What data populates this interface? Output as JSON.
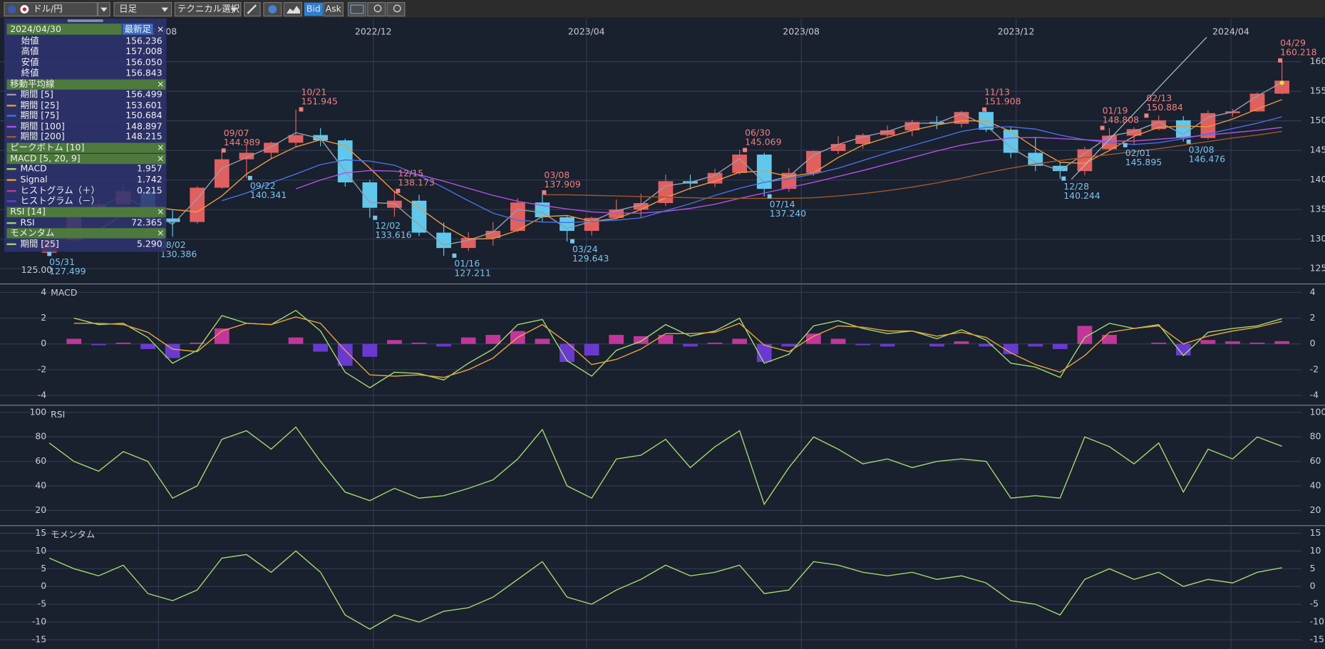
{
  "toolbar": {
    "symbol": "ドル/円",
    "timeframe": "日足",
    "technical": "テクニカル選択",
    "bid": "Bid",
    "ask": "Ask"
  },
  "info_panel": {
    "date": "2024/04/30",
    "latest": "最新足",
    "close": "×",
    "open_label": "始値",
    "open": "156.236",
    "high_label": "高値",
    "high": "157.008",
    "low_label": "安値",
    "low": "156.050",
    "close_label": "終値",
    "close_value": "156.843",
    "ma_title": "移動平均線",
    "peak_title": "ピークボトム [10]",
    "macd_title": "MACD [5, 20, 9]",
    "rsi_title": "RSI [14]",
    "momentum_title": "モメンタム",
    "momentum_value": "5.290"
  },
  "chart_data": [
    {
      "type": "candlestick",
      "cursor_label": "125.00",
      "x": [
        "2022/05/31",
        "2022/06/14",
        "2022/06/28",
        "2022/07/12",
        "2022/07/26",
        "2022/08/09",
        "2022/08/23",
        "2022/09/06",
        "2022/09/20",
        "2022/10/04",
        "2022/10/18",
        "2022/11/01",
        "2022/11/15",
        "2022/11/29",
        "2022/12/13",
        "2022/12/27",
        "2023/01/10",
        "2023/01/24",
        "2023/02/07",
        "2023/02/21",
        "2023/03/07",
        "2023/03/21",
        "2023/04/04",
        "2023/04/18",
        "2023/05/02",
        "2023/05/16",
        "2023/05/30",
        "2023/06/13",
        "2023/06/27",
        "2023/07/11",
        "2023/07/25",
        "2023/08/08",
        "2023/08/22",
        "2023/09/05",
        "2023/09/19",
        "2023/10/03",
        "2023/10/17",
        "2023/10/31",
        "2023/11/14",
        "2023/11/28",
        "2023/12/12",
        "2023/12/26",
        "2024/01/09",
        "2024/01/23",
        "2024/02/06",
        "2024/02/20",
        "2024/03/05",
        "2024/03/19",
        "2024/04/02",
        "2024/04/16",
        "2024/04/30"
      ],
      "open": [
        127.7,
        129.8,
        134.5,
        135.9,
        138.1,
        133.5,
        132.9,
        138.7,
        143.5,
        144.6,
        146.3,
        147.6,
        146.7,
        139.6,
        135.3,
        136.5,
        131.1,
        128.5,
        130.2,
        131.4,
        136.2,
        133.7,
        131.4,
        133.6,
        135.0,
        136.1,
        139.8,
        139.4,
        141.2,
        144.3,
        138.5,
        141.2,
        144.9,
        146.1,
        147.6,
        148.4,
        149.8,
        149.5,
        151.5,
        148.5,
        144.6,
        142.4,
        141.5,
        145.2,
        147.5,
        148.6,
        150.1,
        147.1,
        151.3,
        151.6,
        154.6
      ],
      "high": [
        130.0,
        135.6,
        137.0,
        139.4,
        138.8,
        135.0,
        139.0,
        145.0,
        145.9,
        146.5,
        151.9,
        148.8,
        147.0,
        140.0,
        138.2,
        137.5,
        132.8,
        131.2,
        132.9,
        136.9,
        137.9,
        134.0,
        133.8,
        136.7,
        137.7,
        140.9,
        140.9,
        141.9,
        145.1,
        144.6,
        142.0,
        145.0,
        147.4,
        147.9,
        149.2,
        150.2,
        150.8,
        151.7,
        151.9,
        149.0,
        147.3,
        143.0,
        145.6,
        148.8,
        148.9,
        150.9,
        150.8,
        151.8,
        152.0,
        154.8,
        160.2
      ],
      "low": [
        127.5,
        129.6,
        133.9,
        135.5,
        132.5,
        130.4,
        132.6,
        138.5,
        140.3,
        143.5,
        145.5,
        145.7,
        138.9,
        133.6,
        133.8,
        130.5,
        127.2,
        128.0,
        128.9,
        131.2,
        133.0,
        129.6,
        130.6,
        133.4,
        133.6,
        135.6,
        138.4,
        138.8,
        140.9,
        137.2,
        138.0,
        140.7,
        144.4,
        145.3,
        147.3,
        147.4,
        148.6,
        148.9,
        148.1,
        143.7,
        141.5,
        140.2,
        140.8,
        144.9,
        145.9,
        148.4,
        146.5,
        146.9,
        150.7,
        151.5,
        154.5
      ],
      "close": [
        129.8,
        134.5,
        135.9,
        138.1,
        133.5,
        132.9,
        138.7,
        143.5,
        144.6,
        146.3,
        147.6,
        146.7,
        139.6,
        135.3,
        136.5,
        131.1,
        128.5,
        130.2,
        131.4,
        136.2,
        133.7,
        131.4,
        133.6,
        135.0,
        136.1,
        139.8,
        139.4,
        141.2,
        144.3,
        138.5,
        141.2,
        144.9,
        146.1,
        147.6,
        148.4,
        149.8,
        149.5,
        151.5,
        148.5,
        144.6,
        142.4,
        141.5,
        145.2,
        147.5,
        148.6,
        150.1,
        147.1,
        151.3,
        151.6,
        154.6,
        156.8
      ],
      "up_color": "#e06060",
      "down_color": "#60c8ec",
      "series": [
        {
          "name": "期間 [5]",
          "color": "#9a9aa8",
          "values": [
            128.9,
            133.2,
            135.3,
            137.4,
            135.0,
            132.5,
            136.8,
            142.0,
            143.8,
            145.6,
            148.0,
            147.0,
            141.5,
            136.2,
            136.0,
            132.4,
            129.0,
            129.8,
            131.2,
            135.0,
            134.5,
            131.8,
            133.0,
            134.8,
            135.8,
            139.0,
            139.6,
            140.8,
            143.6,
            139.6,
            140.6,
            144.2,
            146.0,
            147.3,
            148.2,
            149.6,
            149.6,
            151.2,
            149.2,
            145.5,
            143.0,
            141.6,
            144.5,
            147.4,
            148.2,
            149.8,
            147.7,
            150.6,
            151.5,
            154.2,
            156.499
          ]
        },
        {
          "name": "期間 [25]",
          "color": "#e89a3c",
          "values": [
            null,
            null,
            131.5,
            134.2,
            135.6,
            135.0,
            134.6,
            137.3,
            141.0,
            143.6,
            145.6,
            146.8,
            145.8,
            142.0,
            138.0,
            135.3,
            132.3,
            130.0,
            130.1,
            131.5,
            133.8,
            134.0,
            133.0,
            133.5,
            135.0,
            137.0,
            138.6,
            139.8,
            141.3,
            141.5,
            140.6,
            141.2,
            143.8,
            145.9,
            147.2,
            148.4,
            149.3,
            150.0,
            150.0,
            148.2,
            145.4,
            143.0,
            142.8,
            145.0,
            147.4,
            148.9,
            149.1,
            149.0,
            150.3,
            152.0,
            153.601
          ]
        },
        {
          "name": "期間 [75]",
          "color": "#4a6ee0",
          "values": [
            null,
            null,
            null,
            null,
            null,
            null,
            null,
            136.5,
            137.8,
            139.5,
            141.0,
            142.6,
            143.4,
            143.2,
            142.5,
            140.8,
            138.7,
            136.5,
            134.4,
            133.2,
            132.9,
            132.8,
            133.0,
            133.2,
            133.6,
            134.8,
            136.0,
            137.4,
            138.6,
            139.6,
            140.2,
            141.0,
            142.0,
            143.3,
            144.6,
            145.8,
            147.0,
            148.2,
            148.9,
            149.0,
            148.6,
            147.6,
            146.8,
            146.3,
            146.0,
            146.3,
            147.0,
            147.8,
            148.7,
            149.6,
            150.684
          ]
        },
        {
          "name": "期間 [100]",
          "color": "#b050e0",
          "values": [
            null,
            null,
            null,
            null,
            null,
            null,
            null,
            null,
            null,
            null,
            138.5,
            140.0,
            141.2,
            141.6,
            141.5,
            140.9,
            139.8,
            138.6,
            137.4,
            136.4,
            135.7,
            135.1,
            134.6,
            134.4,
            134.4,
            134.7,
            135.2,
            135.9,
            136.9,
            137.8,
            138.7,
            139.6,
            140.6,
            141.6,
            142.7,
            143.8,
            144.9,
            145.9,
            146.6,
            147.1,
            147.2,
            147.0,
            146.8,
            146.6,
            146.6,
            146.9,
            147.2,
            147.6,
            148.0,
            148.4,
            148.897
          ]
        },
        {
          "name": "期間 [200]",
          "color": "#a0582a",
          "values": [
            null,
            null,
            null,
            null,
            null,
            null,
            null,
            null,
            null,
            null,
            null,
            null,
            null,
            null,
            null,
            null,
            null,
            null,
            null,
            null,
            137.5,
            137.5,
            137.4,
            137.3,
            137.2,
            137.1,
            137.0,
            136.9,
            136.9,
            136.9,
            136.9,
            137.0,
            137.3,
            137.7,
            138.2,
            138.8,
            139.5,
            140.3,
            141.2,
            142.0,
            142.7,
            143.3,
            143.8,
            144.3,
            144.8,
            145.3,
            145.9,
            146.5,
            147.1,
            147.6,
            148.215
          ]
        }
      ],
      "peak_color": "#f08080",
      "bottom_color": "#7cc4ec",
      "annotations": [
        {
          "kind": "bottom",
          "date": "05/31",
          "value": 127.499,
          "label": "127.499"
        },
        {
          "kind": "bottom",
          "date": "08/02",
          "value": 130.386,
          "label": "130.386"
        },
        {
          "kind": "peak",
          "date": "09/07",
          "value": 144.989,
          "label": "144.989"
        },
        {
          "kind": "bottom",
          "date": "09/22",
          "value": 140.341,
          "label": "140.341"
        },
        {
          "kind": "peak",
          "date": "10/21",
          "value": 151.945,
          "label": "151.945"
        },
        {
          "kind": "bottom",
          "date": "12/02",
          "value": 133.616,
          "label": "133.616"
        },
        {
          "kind": "peak",
          "date": "12/15",
          "value": 138.173,
          "label": "138.173"
        },
        {
          "kind": "bottom",
          "date": "01/16",
          "value": 127.211,
          "label": "127.211"
        },
        {
          "kind": "peak",
          "date": "03/08",
          "value": 137.909,
          "label": "137.909"
        },
        {
          "kind": "bottom",
          "date": "03/24",
          "value": 129.643,
          "label": "129.643"
        },
        {
          "kind": "peak",
          "date": "06/30",
          "value": 145.069,
          "label": "145.069"
        },
        {
          "kind": "bottom",
          "date": "07/14",
          "value": 137.24,
          "label": "137.240"
        },
        {
          "kind": "peak",
          "date": "11/13",
          "value": 151.908,
          "label": "151.908"
        },
        {
          "kind": "bottom",
          "date": "12/28",
          "value": 140.244,
          "label": "140.244"
        },
        {
          "kind": "peak",
          "date": "01/19",
          "value": 148.808,
          "label": "148.808"
        },
        {
          "kind": "bottom",
          "date": "02/01",
          "value": 145.895,
          "label": "145.895"
        },
        {
          "kind": "peak",
          "date": "02/13",
          "value": 150.884,
          "label": "150.884"
        },
        {
          "kind": "bottom",
          "date": "03/08",
          "value": 146.476,
          "label": "146.476"
        },
        {
          "kind": "peak",
          "date": "04/29",
          "value": 160.218,
          "label": "160.218"
        }
      ],
      "xlim": [
        "2022/05/03",
        "2024/05/11"
      ],
      "xticks": [
        "2022/08",
        "2022/12",
        "2023/04",
        "2023/08",
        "2023/12",
        "2024/04"
      ],
      "ylim": [
        122.57,
        167.29
      ],
      "yticks": [
        125,
        130,
        135,
        140,
        145,
        150,
        155,
        160
      ],
      "grid": true
    },
    {
      "type": "macd",
      "title": "MACD",
      "series": [
        {
          "name": "MACD",
          "color": "#9ed86a",
          "values": [
            null,
            2.0,
            1.5,
            1.6,
            0.5,
            -1.5,
            -0.5,
            2.2,
            1.6,
            1.5,
            2.6,
            1.0,
            -2.2,
            -3.4,
            -2.2,
            -2.3,
            -2.8,
            -1.5,
            -0.4,
            1.5,
            1.9,
            -1.3,
            -2.5,
            -0.5,
            0.2,
            1.5,
            0.6,
            1.0,
            2.0,
            -1.5,
            -0.8,
            1.4,
            1.8,
            1.2,
            0.8,
            1.0,
            0.4,
            1.1,
            0.3,
            -1.5,
            -1.8,
            -2.6,
            0.5,
            1.6,
            1.2,
            1.5,
            -0.9,
            0.9,
            1.2,
            1.4,
            1.957
          ]
        },
        {
          "name": "Signal",
          "color": "#e8a23a",
          "values": [
            null,
            1.6,
            1.6,
            1.5,
            0.9,
            -0.4,
            -0.6,
            1.0,
            1.6,
            1.5,
            2.1,
            1.6,
            -0.5,
            -2.4,
            -2.5,
            -2.4,
            -2.6,
            -2.0,
            -1.1,
            0.5,
            1.5,
            0.1,
            -1.6,
            -1.2,
            -0.4,
            0.8,
            0.8,
            0.9,
            1.6,
            -0.1,
            -0.6,
            0.6,
            1.4,
            1.3,
            1.0,
            1.0,
            0.6,
            0.9,
            0.5,
            -0.7,
            -1.6,
            -2.2,
            -0.9,
            0.9,
            1.2,
            1.4,
            0.0,
            0.6,
            1.0,
            1.3,
            1.742
          ]
        }
      ],
      "histogram": {
        "positive_name": "ヒストグラム（＋）",
        "negative_name": "ヒストグラム（－）",
        "positive_color": "#c2369a",
        "negative_color": "#6a3ad0",
        "values": [
          null,
          0.4,
          -0.1,
          0.1,
          -0.4,
          -1.1,
          0.1,
          1.2,
          0.0,
          0.0,
          0.5,
          -0.6,
          -1.7,
          -1.0,
          0.3,
          0.1,
          -0.2,
          0.5,
          0.7,
          1.0,
          0.4,
          -1.4,
          -0.9,
          0.7,
          0.6,
          0.7,
          -0.2,
          0.1,
          0.4,
          -1.4,
          -0.2,
          0.8,
          0.4,
          -0.1,
          -0.2,
          0.0,
          -0.2,
          0.2,
          -0.2,
          -0.8,
          -0.2,
          -0.4,
          1.4,
          0.7,
          0.0,
          0.1,
          -0.9,
          0.3,
          0.2,
          0.1,
          0.215
        ]
      },
      "ylim": [
        -4.66,
        4.59
      ],
      "yticks": [
        -4,
        -2,
        0,
        2,
        4
      ],
      "grid": true
    },
    {
      "type": "line",
      "title": "RSI",
      "series": [
        {
          "name": "RSI",
          "color": "#9ed86a",
          "values": [
            75,
            60,
            52,
            68,
            60,
            30,
            40,
            78,
            85,
            70,
            88,
            60,
            35,
            28,
            38,
            30,
            32,
            38,
            45,
            62,
            86,
            40,
            30,
            62,
            65,
            78,
            55,
            72,
            85,
            25,
            55,
            80,
            70,
            58,
            62,
            55,
            60,
            62,
            60,
            30,
            32,
            30,
            80,
            72,
            58,
            75,
            35,
            70,
            62,
            80,
            72.365
          ]
        }
      ],
      "ylim": [
        9,
        104.8
      ],
      "yticks": [
        20,
        40,
        60,
        80,
        100
      ],
      "grid": true
    },
    {
      "type": "line",
      "title": "モメンタム",
      "series": [
        {
          "name": "期間 [25]",
          "color": "#9ed86a",
          "values": [
            8,
            5,
            3,
            6,
            -2,
            -4,
            -1,
            8,
            9,
            4,
            10,
            4,
            -8,
            -12,
            -8,
            -10,
            -7,
            -6,
            -3,
            2,
            7,
            -3,
            -5,
            -1,
            2,
            6,
            3,
            4,
            6,
            -2,
            -1,
            7,
            6,
            4,
            3,
            4,
            2,
            3,
            1,
            -4,
            -5,
            -8,
            2,
            5,
            2,
            4,
            0,
            2,
            1,
            4,
            5.29
          ]
        }
      ],
      "ylim": [
        -17.6,
        16.9
      ],
      "yticks": [
        -15,
        -10,
        -5,
        0,
        5,
        10,
        15
      ],
      "grid": true
    }
  ]
}
